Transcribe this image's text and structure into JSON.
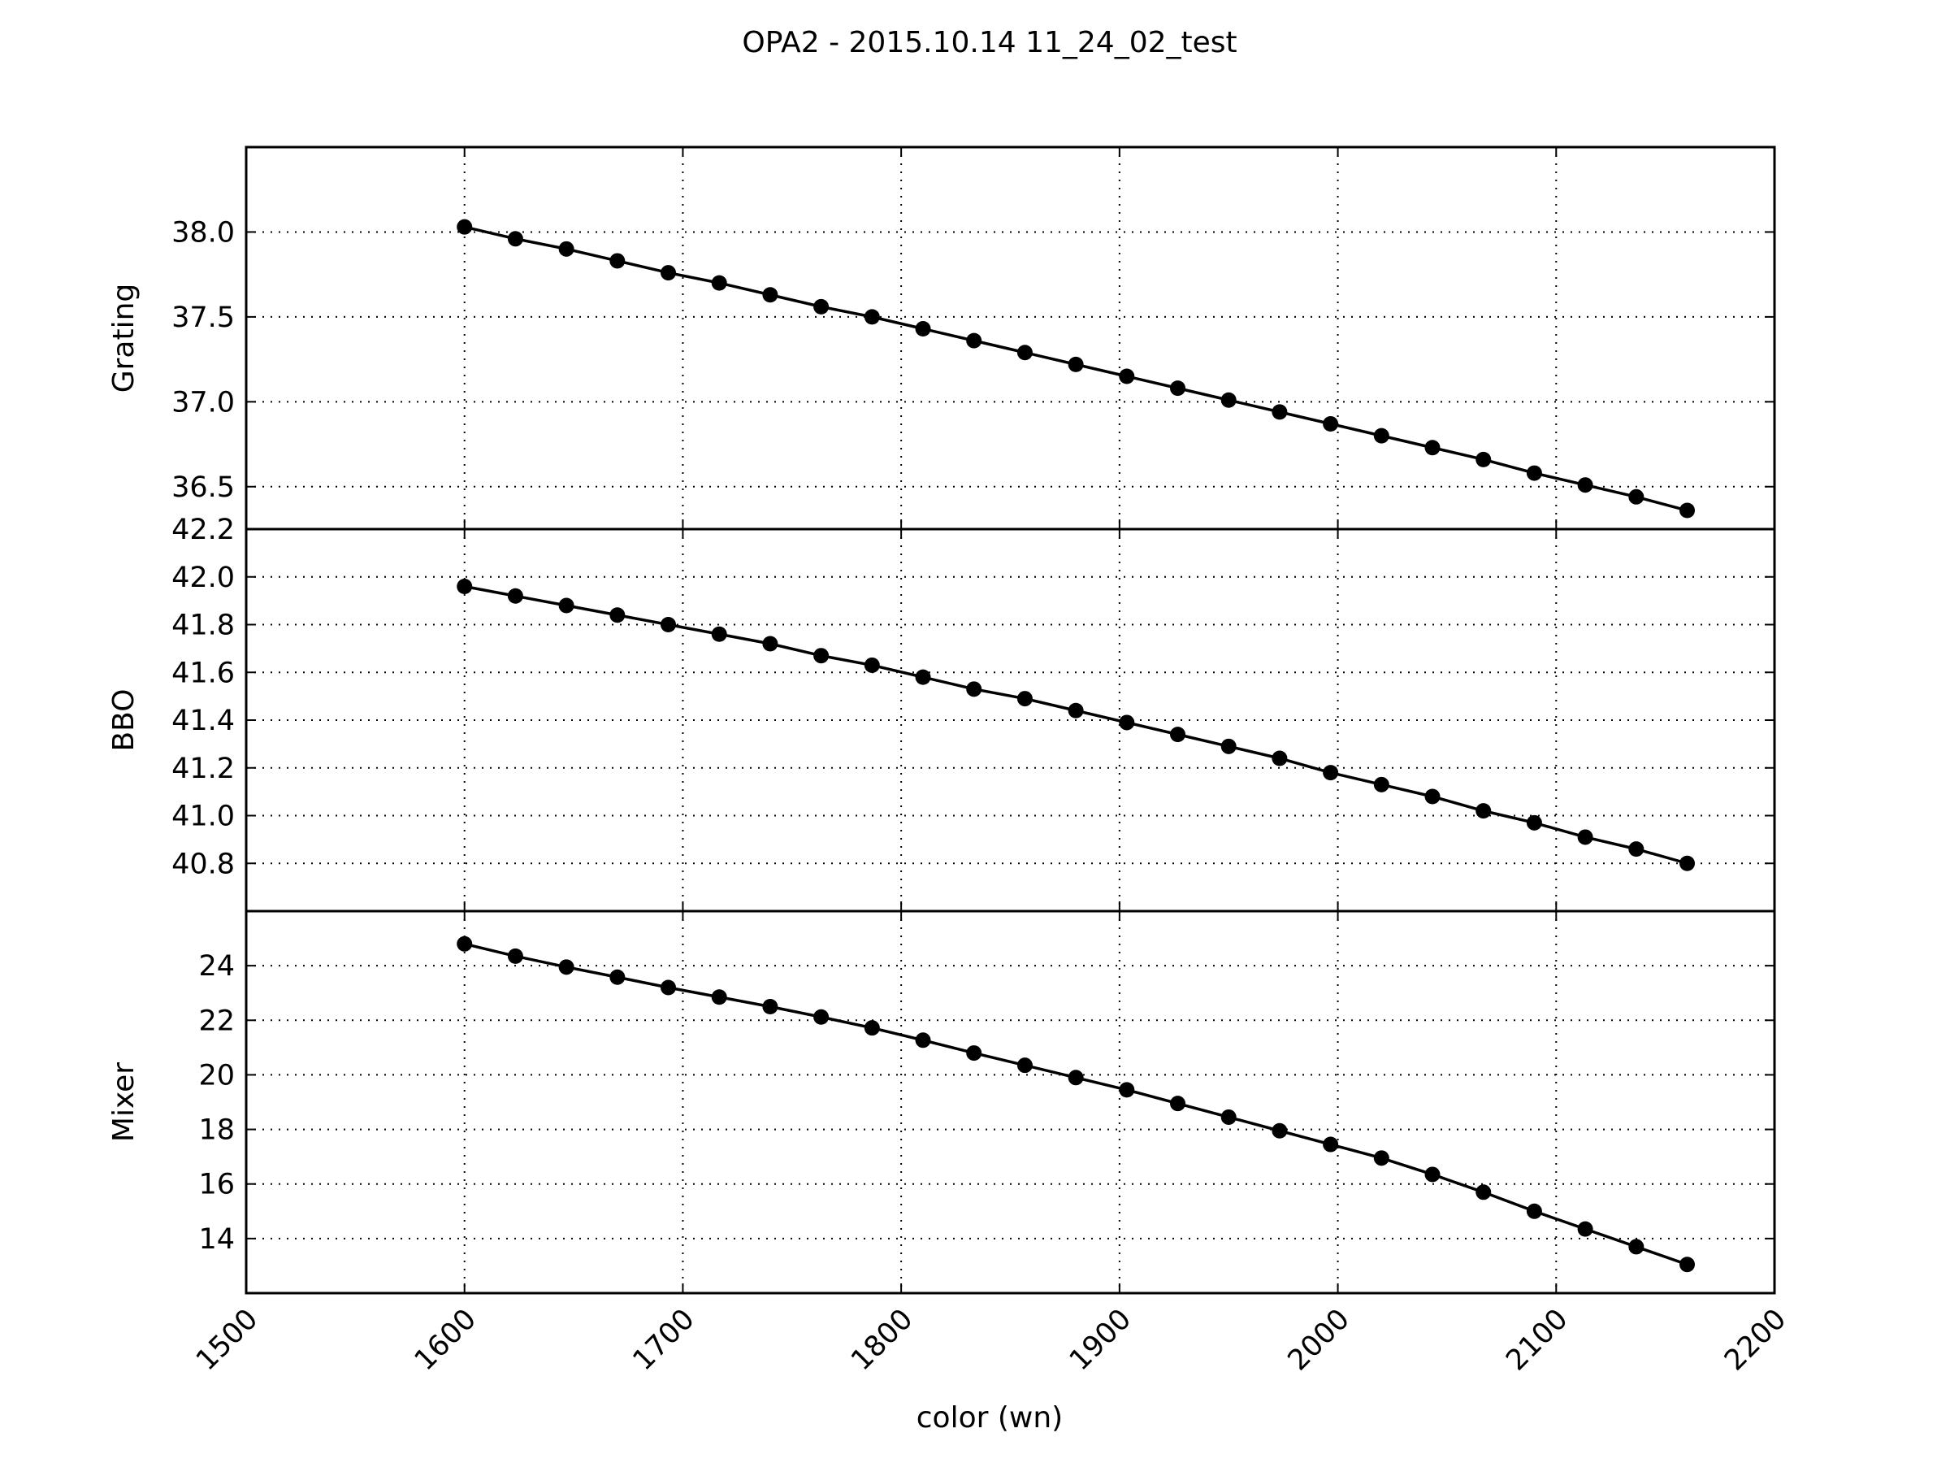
{
  "chart_data": {
    "type": "line",
    "title": "OPA2 - 2015.10.14 11_24_02_test",
    "xlabel": "color (wn)",
    "xlim": [
      1500,
      2200
    ],
    "x_ticks": [
      1500,
      1600,
      1700,
      1800,
      1900,
      2000,
      2100,
      2200
    ],
    "grid": true,
    "x": [
      1600,
      1623.33,
      1646.67,
      1670,
      1693.33,
      1716.67,
      1740,
      1763.33,
      1786.67,
      1810,
      1833.33,
      1856.67,
      1880,
      1903.33,
      1926.67,
      1950,
      1973.33,
      1996.67,
      2020,
      2043.33,
      2066.67,
      2090,
      2113.33,
      2136.67,
      2160
    ],
    "panels": [
      {
        "ylabel": "Grating",
        "ylim": [
          36.25,
          38.5
        ],
        "y_ticks": [
          36.5,
          37.0,
          37.5,
          38.0
        ],
        "y_tick_labels": [
          "36.5",
          "37.0",
          "37.5",
          "38.0"
        ],
        "values": [
          38.03,
          37.96,
          37.9,
          37.83,
          37.76,
          37.7,
          37.63,
          37.56,
          37.5,
          37.43,
          37.36,
          37.29,
          37.22,
          37.15,
          37.08,
          37.01,
          36.94,
          36.87,
          36.8,
          36.73,
          36.66,
          36.58,
          36.51,
          36.44,
          36.36
        ]
      },
      {
        "ylabel": "BBO",
        "ylim": [
          40.6,
          42.2
        ],
        "y_ticks": [
          40.8,
          41.0,
          41.2,
          41.4,
          41.6,
          41.8,
          42.0,
          42.2
        ],
        "y_tick_labels": [
          "40.8",
          "41.0",
          "41.2",
          "41.4",
          "41.6",
          "41.8",
          "42.0",
          "42.2"
        ],
        "values": [
          41.96,
          41.92,
          41.88,
          41.84,
          41.8,
          41.76,
          41.72,
          41.67,
          41.63,
          41.58,
          41.53,
          41.49,
          41.44,
          41.39,
          41.34,
          41.29,
          41.24,
          41.18,
          41.13,
          41.08,
          41.02,
          40.97,
          40.91,
          40.86,
          40.8
        ]
      },
      {
        "ylabel": "Mixer",
        "ylim": [
          12,
          26
        ],
        "y_ticks": [
          14,
          16,
          18,
          20,
          22,
          24
        ],
        "y_tick_labels": [
          "14",
          "16",
          "18",
          "20",
          "22",
          "24"
        ],
        "values": [
          24.8,
          24.35,
          23.95,
          23.58,
          23.2,
          22.85,
          22.5,
          22.12,
          21.72,
          21.27,
          20.8,
          20.35,
          19.9,
          19.45,
          18.95,
          18.45,
          17.95,
          17.45,
          16.95,
          16.35,
          15.7,
          15.0,
          14.35,
          13.7,
          13.05
        ]
      }
    ]
  }
}
